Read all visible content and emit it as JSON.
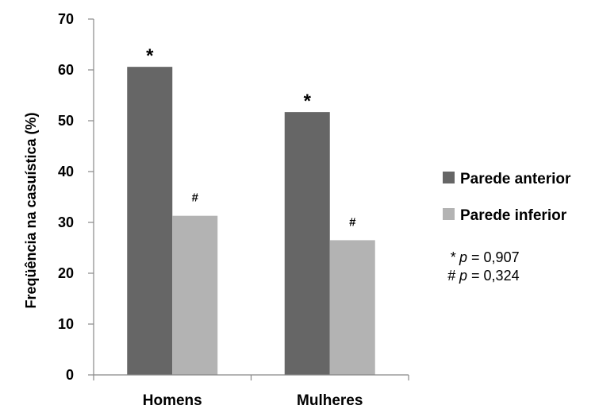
{
  "chart_data": {
    "type": "bar",
    "categories": [
      "Homens",
      "Mulheres"
    ],
    "series": [
      {
        "name": "Parede anterior",
        "values": [
          60.6,
          51.7
        ],
        "color": "#666666",
        "marker": "*"
      },
      {
        "name": "Parede inferior",
        "values": [
          31.3,
          26.5
        ],
        "color": "#b3b3b3",
        "marker": "#"
      }
    ],
    "ylabel": "Freqüência na casuística (%)",
    "ylim": [
      0,
      70
    ],
    "yticks": [
      0,
      10,
      20,
      30,
      40,
      50,
      60,
      70
    ],
    "grid": false,
    "legend_position": "right",
    "annotations": [
      {
        "prefix": "* ",
        "p": "p",
        "rest": " = 0,907"
      },
      {
        "prefix": "# ",
        "p": "p",
        "rest": " = 0,324"
      }
    ]
  }
}
